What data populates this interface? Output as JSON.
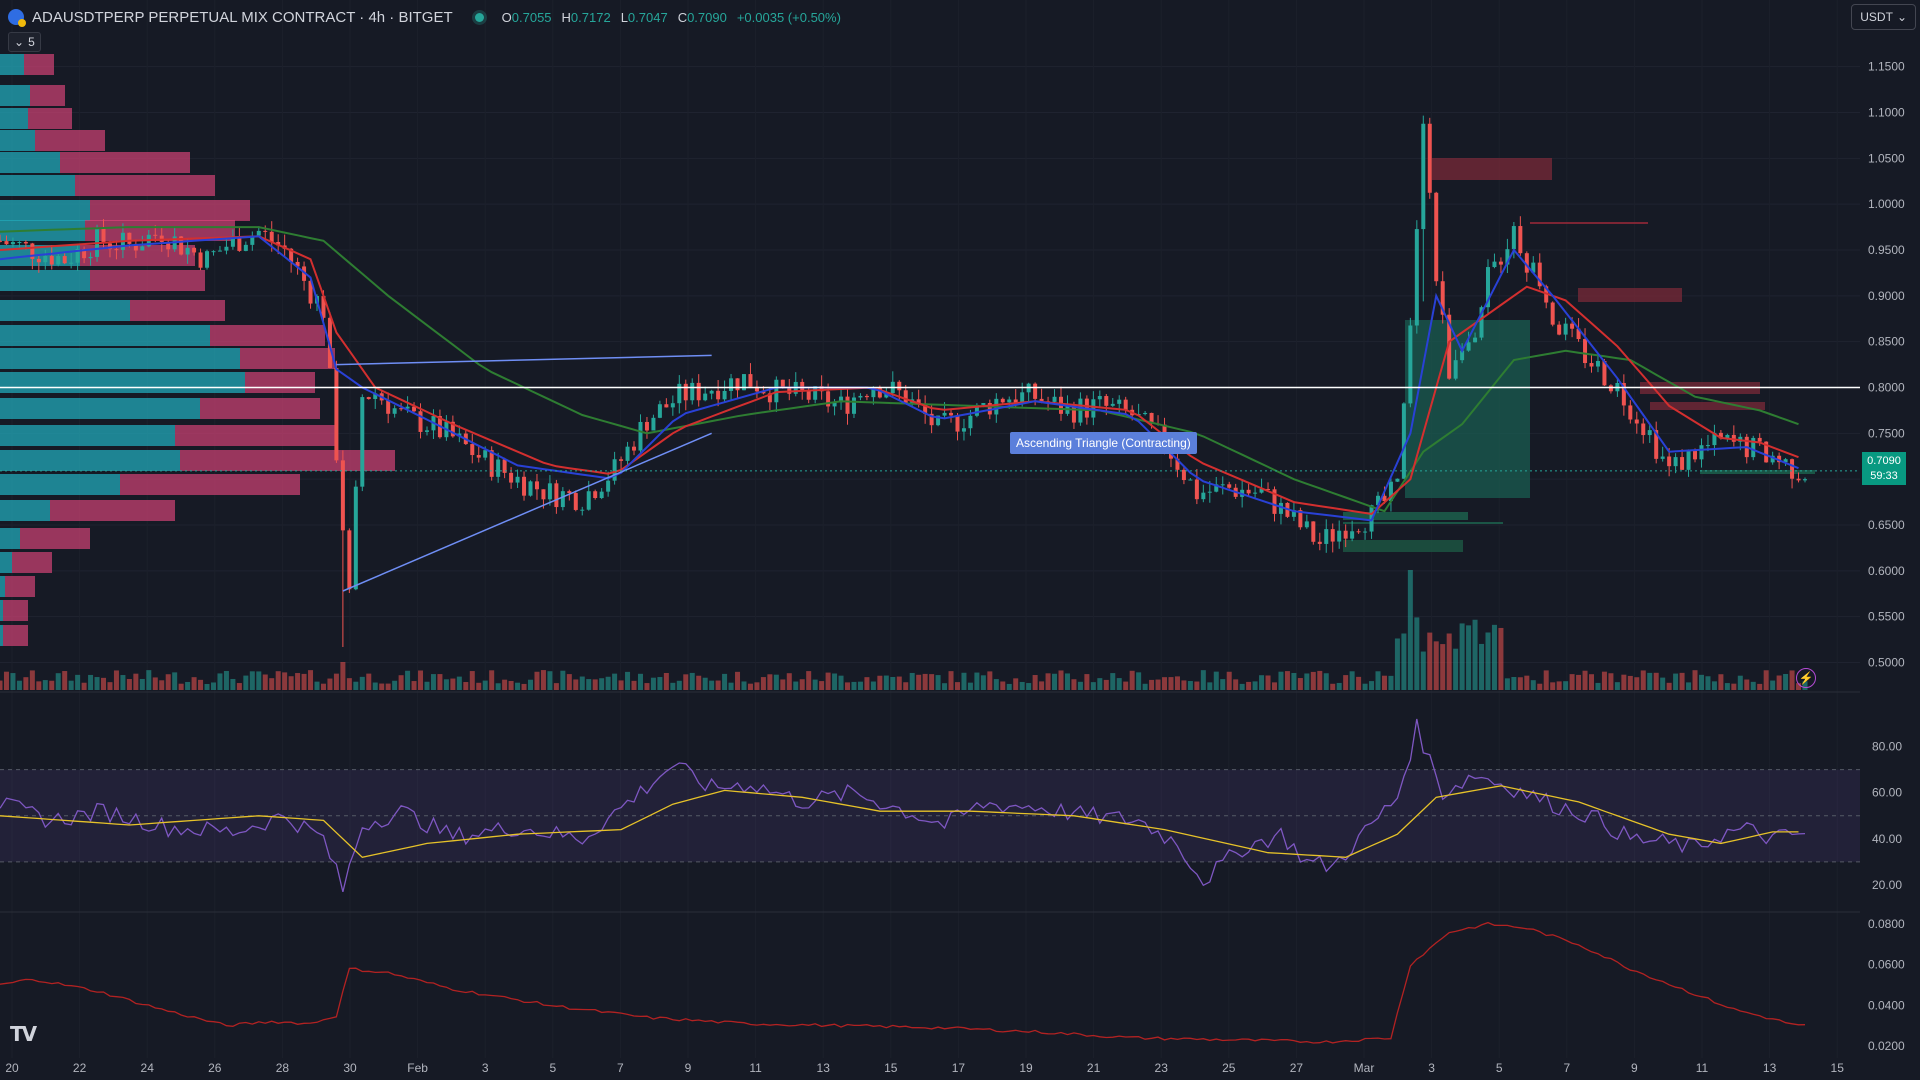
{
  "header": {
    "title": "ADAUSDTPERP PERPETUAL MIX CONTRACT · 4h · BITGET",
    "ohlc": [
      {
        "k": "O",
        "v": "0.7055"
      },
      {
        "k": "H",
        "v": "0.7172"
      },
      {
        "k": "L",
        "v": "0.7047"
      },
      {
        "k": "C",
        "v": "0.7090"
      }
    ],
    "change": "+0.0035 (+0.50%)"
  },
  "collapse_label": "5",
  "currency": "USDT",
  "last_price": "0.7090",
  "countdown": "59:33",
  "pattern_label": "Ascending Triangle (Contracting)",
  "icons": [
    "symbol-icon",
    "live-status-icon",
    "chevron-down-icon",
    "alert-bolt-icon",
    "tradingview-logo"
  ],
  "colors": {
    "background": "#161a25",
    "up": "#26a69a",
    "down": "#ef5350",
    "ema_fast": "#2941d6",
    "ema_mid": "#d32f2f",
    "ema_slow": "#2e7d32",
    "rsi": "#7e57c2",
    "rsi_ma": "#e6c229",
    "atr": "#b22222",
    "trendline": "#6f8ef5",
    "vp_buy": "#22a8b8",
    "vp_sell": "#e0457b"
  },
  "chart_data": [
    {
      "type": "candlestick",
      "title": "ADAUSDTPERP PERPETUAL MIX CONTRACT · 4h · BITGET",
      "x_ticks": [
        "20",
        "22",
        "24",
        "26",
        "28",
        "30",
        "Feb",
        "3",
        "5",
        "7",
        "9",
        "11",
        "13",
        "15",
        "17",
        "19",
        "21",
        "23",
        "25",
        "27",
        "Mar",
        "3",
        "5",
        "7",
        "9",
        "11",
        "13",
        "15"
      ],
      "y_ticks": [
        "0.5000",
        "0.5500",
        "0.6000",
        "0.6500",
        "0.7000",
        "0.7500",
        "0.8000",
        "0.8500",
        "0.9000",
        "0.9500",
        "1.0000",
        "1.0500",
        "1.1000",
        "1.1500"
      ],
      "ylim": [
        0.47,
        1.19
      ],
      "price_anchors": [
        [
          0,
          0.96
        ],
        [
          5,
          0.95
        ],
        [
          10,
          0.94
        ],
        [
          15,
          0.96
        ],
        [
          20,
          0.955
        ],
        [
          25,
          0.97
        ],
        [
          28,
          0.955
        ],
        [
          32,
          0.94
        ],
        [
          35,
          0.955
        ],
        [
          38,
          0.965
        ],
        [
          40,
          0.97
        ],
        [
          44,
          0.95
        ],
        [
          48,
          0.905
        ],
        [
          50,
          0.885
        ],
        [
          52,
          0.73
        ],
        [
          54,
          0.57
        ],
        [
          56,
          0.79
        ],
        [
          58,
          0.795
        ],
        [
          62,
          0.77
        ],
        [
          66,
          0.76
        ],
        [
          70,
          0.745
        ],
        [
          75,
          0.72
        ],
        [
          80,
          0.7
        ],
        [
          85,
          0.685
        ],
        [
          90,
          0.68
        ],
        [
          95,
          0.71
        ],
        [
          100,
          0.765
        ],
        [
          105,
          0.79
        ],
        [
          110,
          0.8
        ],
        [
          115,
          0.81
        ],
        [
          120,
          0.795
        ],
        [
          125,
          0.79
        ],
        [
          130,
          0.78
        ],
        [
          135,
          0.805
        ],
        [
          140,
          0.79
        ],
        [
          145,
          0.755
        ],
        [
          150,
          0.77
        ],
        [
          155,
          0.79
        ],
        [
          160,
          0.79
        ],
        [
          165,
          0.775
        ],
        [
          170,
          0.78
        ],
        [
          175,
          0.77
        ],
        [
          180,
          0.74
        ],
        [
          185,
          0.685
        ],
        [
          190,
          0.69
        ],
        [
          195,
          0.685
        ],
        [
          200,
          0.655
        ],
        [
          204,
          0.63
        ],
        [
          208,
          0.65
        ],
        [
          212,
          0.66
        ],
        [
          216,
          0.69
        ],
        [
          218,
          0.86
        ],
        [
          220,
          1.1
        ],
        [
          222,
          0.92
        ],
        [
          224,
          0.82
        ],
        [
          226,
          0.855
        ],
        [
          228,
          0.84
        ],
        [
          230,
          0.92
        ],
        [
          232,
          0.945
        ],
        [
          234,
          0.975
        ],
        [
          236,
          0.94
        ],
        [
          238,
          0.92
        ],
        [
          240,
          0.875
        ],
        [
          245,
          0.835
        ],
        [
          250,
          0.8
        ],
        [
          255,
          0.75
        ],
        [
          258,
          0.71
        ],
        [
          262,
          0.73
        ],
        [
          266,
          0.74
        ],
        [
          270,
          0.735
        ],
        [
          274,
          0.725
        ],
        [
          278,
          0.709
        ]
      ],
      "ema_fast_anchors": [
        [
          0,
          0.94
        ],
        [
          20,
          0.955
        ],
        [
          40,
          0.965
        ],
        [
          48,
          0.92
        ],
        [
          52,
          0.82
        ],
        [
          56,
          0.8
        ],
        [
          66,
          0.765
        ],
        [
          80,
          0.715
        ],
        [
          95,
          0.7
        ],
        [
          105,
          0.77
        ],
        [
          120,
          0.8
        ],
        [
          135,
          0.8
        ],
        [
          145,
          0.765
        ],
        [
          160,
          0.785
        ],
        [
          175,
          0.77
        ],
        [
          185,
          0.7
        ],
        [
          200,
          0.665
        ],
        [
          212,
          0.655
        ],
        [
          218,
          0.75
        ],
        [
          222,
          0.9
        ],
        [
          226,
          0.84
        ],
        [
          234,
          0.95
        ],
        [
          240,
          0.9
        ],
        [
          250,
          0.81
        ],
        [
          258,
          0.73
        ],
        [
          270,
          0.735
        ],
        [
          278,
          0.712
        ]
      ],
      "ema_mid_anchors": [
        [
          0,
          0.95
        ],
        [
          20,
          0.96
        ],
        [
          40,
          0.965
        ],
        [
          48,
          0.94
        ],
        [
          52,
          0.86
        ],
        [
          58,
          0.8
        ],
        [
          70,
          0.76
        ],
        [
          85,
          0.715
        ],
        [
          95,
          0.705
        ],
        [
          105,
          0.755
        ],
        [
          120,
          0.795
        ],
        [
          135,
          0.8
        ],
        [
          145,
          0.775
        ],
        [
          160,
          0.785
        ],
        [
          175,
          0.775
        ],
        [
          185,
          0.72
        ],
        [
          200,
          0.675
        ],
        [
          212,
          0.662
        ],
        [
          218,
          0.7
        ],
        [
          224,
          0.85
        ],
        [
          230,
          0.88
        ],
        [
          236,
          0.91
        ],
        [
          242,
          0.895
        ],
        [
          250,
          0.845
        ],
        [
          258,
          0.78
        ],
        [
          266,
          0.745
        ],
        [
          272,
          0.74
        ],
        [
          278,
          0.724
        ]
      ],
      "ema_slow_anchors": [
        [
          0,
          0.97
        ],
        [
          20,
          0.975
        ],
        [
          40,
          0.975
        ],
        [
          50,
          0.96
        ],
        [
          60,
          0.9
        ],
        [
          75,
          0.82
        ],
        [
          90,
          0.77
        ],
        [
          100,
          0.75
        ],
        [
          115,
          0.77
        ],
        [
          130,
          0.785
        ],
        [
          150,
          0.78
        ],
        [
          170,
          0.775
        ],
        [
          185,
          0.75
        ],
        [
          200,
          0.7
        ],
        [
          214,
          0.665
        ],
        [
          220,
          0.73
        ],
        [
          226,
          0.76
        ],
        [
          234,
          0.83
        ],
        [
          242,
          0.84
        ],
        [
          252,
          0.83
        ],
        [
          262,
          0.79
        ],
        [
          272,
          0.775
        ],
        [
          278,
          0.76
        ]
      ],
      "triangle_upper": [
        [
          52,
          0.825
        ],
        [
          110,
          0.835
        ]
      ],
      "triangle_lower": [
        [
          53,
          0.578
        ],
        [
          110,
          0.75
        ]
      ],
      "horizontal_level": 0.8,
      "current_price": 0.709
    },
    {
      "type": "bar",
      "series": [
        {
          "name": "Volume"
        }
      ]
    },
    {
      "type": "line",
      "yticks": [
        "20.00",
        "40.00",
        "60.00",
        "80.00"
      ],
      "ylim": [
        10,
        95
      ],
      "bands": [
        30,
        50,
        70
      ],
      "series": [
        {
          "name": "RSI",
          "anchors": [
            [
              0,
              55
            ],
            [
              8,
              48
            ],
            [
              16,
              52
            ],
            [
              26,
              45
            ],
            [
              36,
              43
            ],
            [
              44,
              50
            ],
            [
              50,
              40
            ],
            [
              53,
              18
            ],
            [
              56,
              46
            ],
            [
              62,
              52
            ],
            [
              70,
              41
            ],
            [
              80,
              45
            ],
            [
              90,
              40
            ],
            [
              98,
              58
            ],
            [
              104,
              72
            ],
            [
              110,
              62
            ],
            [
              116,
              64
            ],
            [
              124,
              56
            ],
            [
              132,
              60
            ],
            [
              140,
              52
            ],
            [
              146,
              46
            ],
            [
              152,
              55
            ],
            [
              160,
              54
            ],
            [
              168,
              50
            ],
            [
              176,
              48
            ],
            [
              182,
              38
            ],
            [
              186,
              22
            ],
            [
              192,
              36
            ],
            [
              198,
              42
            ],
            [
              202,
              30
            ],
            [
              206,
              28
            ],
            [
              212,
              46
            ],
            [
              216,
              58
            ],
            [
              219,
              88
            ],
            [
              223,
              60
            ],
            [
              228,
              68
            ],
            [
              234,
              62
            ],
            [
              240,
              55
            ],
            [
              246,
              50
            ],
            [
              252,
              40
            ],
            [
              258,
              38
            ],
            [
              262,
              36
            ],
            [
              266,
              42
            ],
            [
              270,
              44
            ],
            [
              274,
              40
            ],
            [
              278,
              42
            ]
          ]
        },
        {
          "name": "RSI MA",
          "anchors": [
            [
              0,
              50
            ],
            [
              20,
              46
            ],
            [
              40,
              50
            ],
            [
              50,
              48
            ],
            [
              56,
              32
            ],
            [
              66,
              38
            ],
            [
              80,
              42
            ],
            [
              96,
              44
            ],
            [
              104,
              55
            ],
            [
              112,
              61
            ],
            [
              124,
              58
            ],
            [
              136,
              52
            ],
            [
              150,
              52
            ],
            [
              166,
              50
            ],
            [
              180,
              44
            ],
            [
              196,
              34
            ],
            [
              208,
              32
            ],
            [
              216,
              42
            ],
            [
              222,
              58
            ],
            [
              232,
              63
            ],
            [
              244,
              56
            ],
            [
              258,
              42
            ],
            [
              266,
              38
            ],
            [
              274,
              43
            ],
            [
              278,
              43
            ]
          ]
        }
      ]
    },
    {
      "type": "line",
      "yticks": [
        "0.0200",
        "0.0400",
        "0.0600",
        "0.0800"
      ],
      "ylim": [
        0.018,
        0.082
      ],
      "series": [
        {
          "name": "ATR",
          "anchors": [
            [
              0,
              0.05
            ],
            [
              5,
              0.053
            ],
            [
              15,
              0.047
            ],
            [
              25,
              0.038
            ],
            [
              35,
              0.03
            ],
            [
              42,
              0.032
            ],
            [
              48,
              0.031
            ],
            [
              52,
              0.035
            ],
            [
              54,
              0.058
            ],
            [
              60,
              0.056
            ],
            [
              70,
              0.048
            ],
            [
              85,
              0.04
            ],
            [
              100,
              0.034
            ],
            [
              115,
              0.031
            ],
            [
              130,
              0.03
            ],
            [
              145,
              0.029
            ],
            [
              160,
              0.027
            ],
            [
              175,
              0.024
            ],
            [
              190,
              0.023
            ],
            [
              205,
              0.022
            ],
            [
              215,
              0.024
            ],
            [
              218,
              0.06
            ],
            [
              224,
              0.076
            ],
            [
              230,
              0.08
            ],
            [
              236,
              0.078
            ],
            [
              244,
              0.07
            ],
            [
              252,
              0.058
            ],
            [
              260,
              0.048
            ],
            [
              268,
              0.038
            ],
            [
              278,
              0.03
            ]
          ]
        }
      ]
    }
  ]
}
